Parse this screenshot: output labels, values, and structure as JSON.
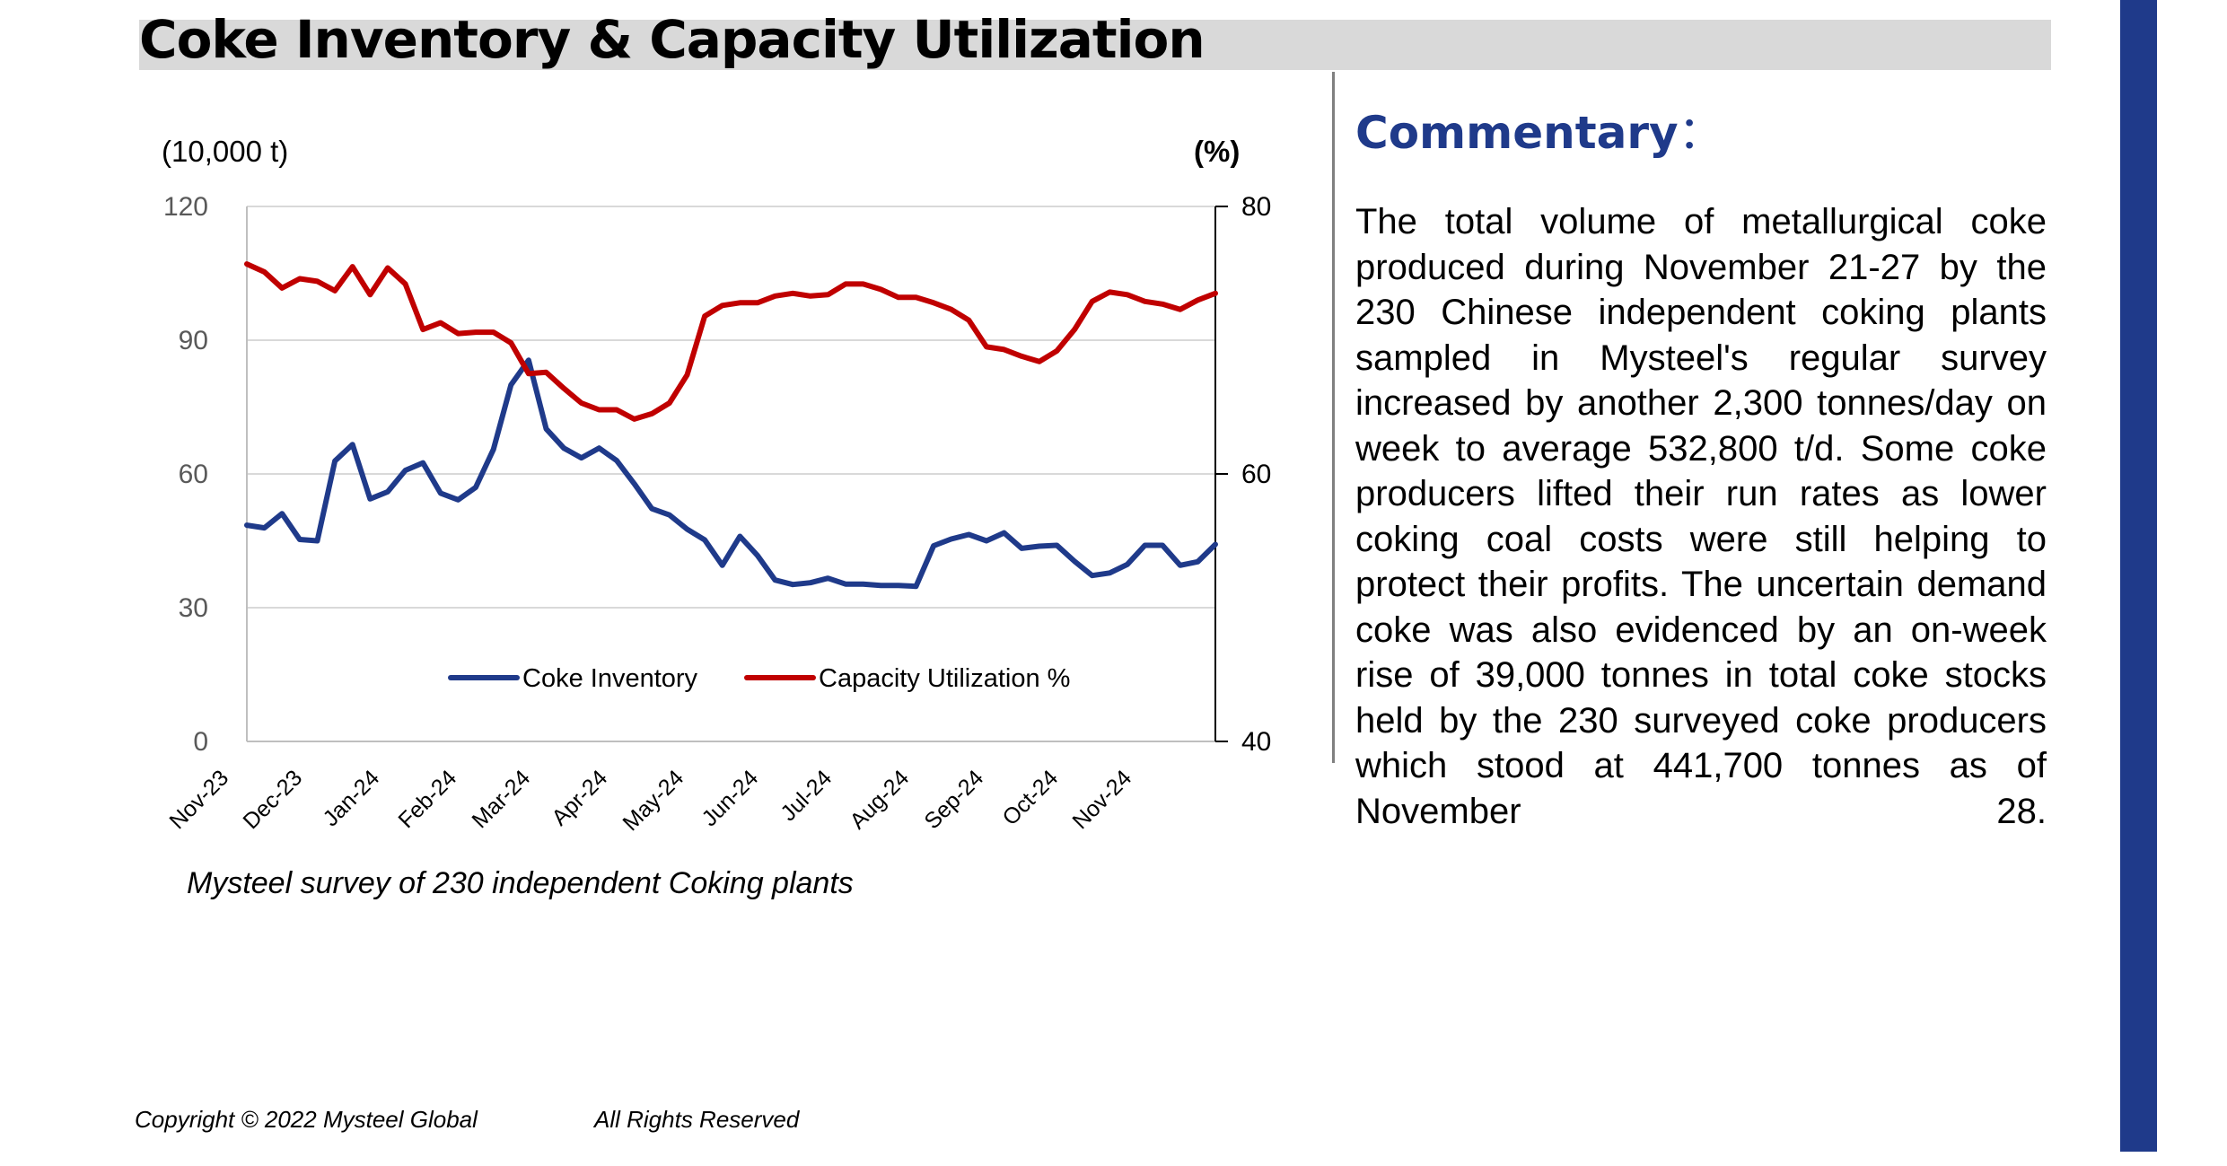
{
  "header": {
    "title": "Coke Inventory & Capacity Utilization"
  },
  "commentary": {
    "title": "Commentary",
    "colon": "：",
    "body": "The total volume of metallurgical coke produced during November 21-27 by the 230 Chinese independent coking plants sampled in Mysteel's regular survey increased by another 2,300 tonnes/day on week to average 532,800 t/d. Some coke producers lifted their run rates as lower coking coal costs were still helping to protect their profits. The uncertain demand coke was also evidenced by an on-week rise of 39,000 tonnes in total coke stocks held by the 230 surveyed coke producers which stood at 441,700 tonnes as of November 28."
  },
  "caption": "Mysteel survey of 230 independent Coking plants",
  "footer": {
    "copyright": "Copyright © 2022 Mysteel Global",
    "rights": "All Rights Reserved"
  },
  "colors": {
    "inventory": "#1f3a8a",
    "utilization": "#c00000",
    "title_bar": "#d9d9d9",
    "accent": "#1f3a8a"
  },
  "chart_data": {
    "type": "line",
    "left_unit": "(10,000 t)",
    "right_unit": "(%)",
    "y_left": {
      "min": 0,
      "max": 120,
      "ticks": [
        0,
        30,
        60,
        90,
        120
      ]
    },
    "y_right": {
      "min": 40,
      "max": 80,
      "ticks": [
        40,
        60,
        80
      ]
    },
    "x_ticks": [
      "Nov-23",
      "Dec-23",
      "Jan-24",
      "Feb-24",
      "Mar-24",
      "Apr-24",
      "May-24",
      "Jun-24",
      "Jul-24",
      "Aug-24",
      "Sep-24",
      "Oct-24",
      "Nov-24"
    ],
    "grid": "horizontal",
    "legend_position": "bottom-center",
    "series": [
      {
        "name": "Coke Inventory",
        "axis": "left",
        "values": [
          48.5,
          47.9,
          51.1,
          45.3,
          45.0,
          62.9,
          66.6,
          54.4,
          56.0,
          60.8,
          62.5,
          55.7,
          54.2,
          57.0,
          65.5,
          80.0,
          85.5,
          70.1,
          65.8,
          63.6,
          65.8,
          63.0,
          57.8,
          52.2,
          50.8,
          47.6,
          45.2,
          39.5,
          46.0,
          41.7,
          36.2,
          35.2,
          35.6,
          36.6,
          35.3,
          35.3,
          35.0,
          35.0,
          34.8,
          43.9,
          45.4,
          46.4,
          45.0,
          46.8,
          43.3,
          43.8,
          44.0,
          40.4,
          37.2,
          37.8,
          39.7,
          44.0,
          44.0,
          39.5,
          40.3,
          44.2
        ]
      },
      {
        "name": "Capacity Utilization %",
        "axis": "right",
        "values": [
          75.7,
          75.1,
          73.9,
          74.6,
          74.4,
          73.7,
          75.5,
          73.4,
          75.4,
          74.2,
          70.8,
          71.3,
          70.5,
          70.6,
          70.6,
          69.8,
          67.5,
          67.6,
          66.4,
          65.3,
          64.8,
          64.8,
          64.1,
          64.5,
          65.3,
          67.4,
          71.8,
          72.6,
          72.8,
          72.8,
          73.3,
          73.5,
          73.3,
          73.4,
          74.2,
          74.2,
          73.8,
          73.2,
          73.2,
          72.8,
          72.3,
          71.5,
          69.5,
          69.3,
          68.8,
          68.4,
          69.2,
          70.8,
          72.9,
          73.6,
          73.4,
          72.9,
          72.7,
          72.3,
          73.0,
          73.5
        ]
      }
    ]
  }
}
